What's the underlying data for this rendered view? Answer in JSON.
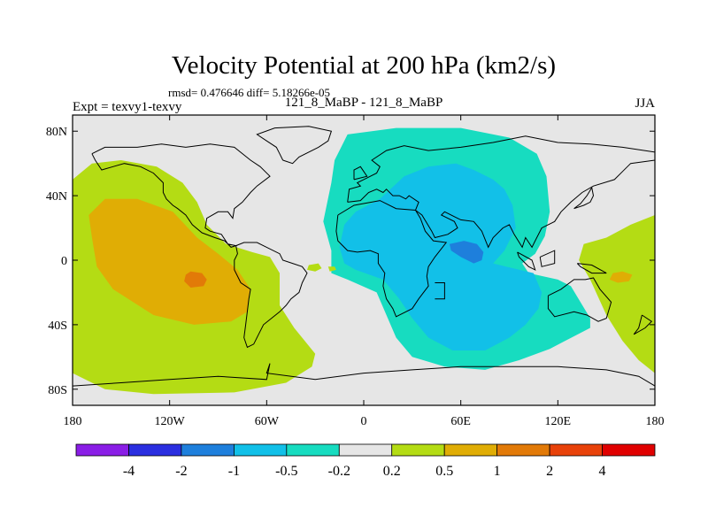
{
  "chart_data": {
    "type": "heatmap",
    "title": "Velocity Potential at 200 hPa (km2/s)",
    "stats_text": "rmsd= 0.476646 diff= 5.18266e-05",
    "left_label": "Expt = texvy1-texvy",
    "center_label": "121_8_MaBP - 121_8_MaBP",
    "right_label": "JJA",
    "x_axis": {
      "range": [
        -180,
        180
      ],
      "ticks": [
        -180,
        -120,
        -60,
        0,
        60,
        120,
        180
      ],
      "tick_labels": [
        "180",
        "120W",
        "60W",
        "0",
        "60E",
        "120E",
        "180"
      ]
    },
    "y_axis": {
      "range": [
        -90,
        90
      ],
      "ticks": [
        80,
        40,
        0,
        -40,
        -80
      ],
      "tick_labels": [
        "80N",
        "40N",
        "0",
        "40S",
        "80S"
      ]
    },
    "colorbar": {
      "levels": [
        "-4",
        "-2",
        "-1",
        "-0.5",
        "-0.2",
        "0.2",
        "0.5",
        "1",
        "2",
        "4"
      ],
      "colors": [
        "#8a1ee6",
        "#2b2fe0",
        "#1e7fdc",
        "#12c0e8",
        "#17dcc0",
        "#e6e6e6",
        "#b4dc14",
        "#e0ad05",
        "#e27a08",
        "#e8420a",
        "#e00000"
      ]
    },
    "fields": [
      {
        "name": "pacific-positive",
        "range": "0.2 to 0.5",
        "color": "#b4dc14"
      },
      {
        "name": "pacific-core",
        "range": "0.5 to 1",
        "color": "#e0ad05"
      },
      {
        "name": "pacific-max",
        "range": "1 to 2",
        "color": "#e27a08"
      },
      {
        "name": "eastern-negative",
        "range": "-0.5 to -0.2",
        "color": "#17dcc0"
      },
      {
        "name": "eastern-core",
        "range": "-1 to -0.5",
        "color": "#12c0e8"
      },
      {
        "name": "eastern-min",
        "range": "-2 to -1",
        "color": "#1e7fdc"
      },
      {
        "name": "west-pacific-positive",
        "range": "0.2 to 0.5",
        "color": "#b4dc14"
      },
      {
        "name": "west-pacific-max",
        "range": "0.5 to 1",
        "color": "#e0ad05"
      }
    ]
  }
}
